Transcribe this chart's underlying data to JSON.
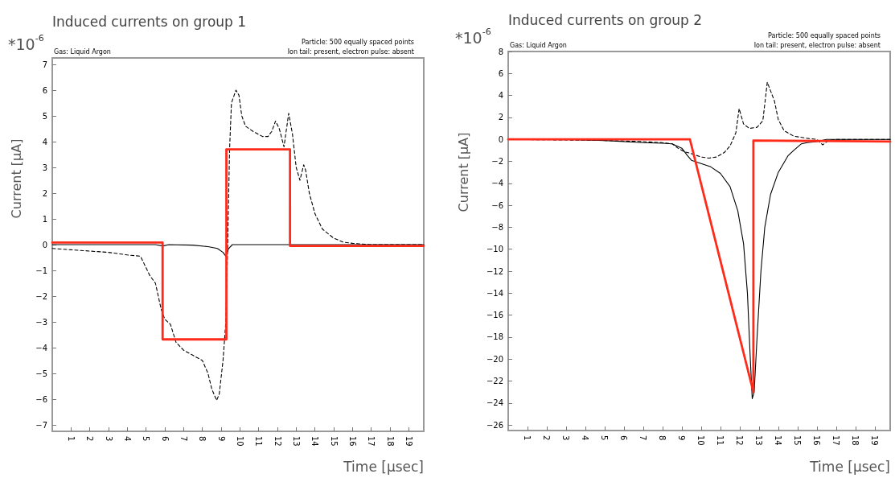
{
  "chart_data": [
    {
      "type": "line",
      "title": "Induced currents on group 1",
      "xlabel": "Time [μsec]",
      "ylabel": "Current [μA]",
      "annotations": [
        "*10$^{-6}$",
        "Gas: Liquid Argon",
        "Particle: 500 equally spaced points",
        "Ion tail: present, electron pulse: absent"
      ],
      "xlim": [
        0,
        19.8
      ],
      "xticks": [
        1,
        2,
        3,
        4,
        5,
        6,
        7,
        8,
        9,
        10,
        11,
        12,
        13,
        14,
        15,
        16,
        17,
        18,
        19
      ],
      "ylim": [
        -7.25,
        7.25
      ],
      "yticks": [
        -7,
        -6,
        -5,
        -4,
        -3,
        -2,
        -1,
        0,
        1,
        2,
        3,
        4,
        5,
        6,
        7
      ],
      "marker": "none",
      "series": [
        {
          "color": "#000000",
          "line_style": "solid",
          "x": [
            0,
            5.5,
            5.9,
            6.2,
            7.5,
            8.3,
            8.8,
            9.1,
            9.25,
            9.4,
            9.6,
            19.8
          ],
          "values": [
            0,
            0,
            -0.05,
            0,
            -0.02,
            -0.08,
            -0.15,
            -0.3,
            -0.45,
            -0.15,
            0,
            0
          ]
        },
        {
          "color": "#000000",
          "line_style": "dashed",
          "x": [
            0,
            1,
            2,
            3,
            4,
            4.7,
            5,
            5.2,
            5.5,
            5.8,
            6,
            6.3,
            6.6,
            7,
            7.5,
            8,
            8.3,
            8.5,
            8.76,
            8.9,
            9.1,
            9.25,
            9.35,
            9.45,
            9.55,
            9.79,
            9.95,
            10.1,
            10.3,
            10.7,
            11.2,
            11.5,
            11.7,
            11.9,
            12.1,
            12.35,
            12.6,
            12.8,
            13,
            13.2,
            13.4,
            13.5,
            13.7,
            14,
            14.4,
            15,
            15.5,
            16,
            17,
            19.8
          ],
          "values": [
            -0.15,
            -0.2,
            -0.25,
            -0.3,
            -0.4,
            -0.45,
            -0.9,
            -1.2,
            -1.5,
            -2.5,
            -2.9,
            -3.1,
            -3.8,
            -4.1,
            -4.3,
            -4.5,
            -5,
            -5.6,
            -6.05,
            -5.8,
            -4.5,
            -3,
            0,
            3.7,
            5.5,
            6,
            5.8,
            5,
            4.6,
            4.4,
            4.2,
            4.2,
            4.4,
            4.8,
            4.5,
            3.8,
            5.1,
            4.3,
            3,
            2.5,
            3.1,
            2.9,
            2,
            1.2,
            0.6,
            0.25,
            0.1,
            0.05,
            0,
            0
          ]
        },
        {
          "color": "#ff2a1a",
          "line_style": "solid",
          "x": [
            0,
            5.88,
            5.88,
            9.28,
            9.28,
            12.67,
            12.67,
            19.8
          ],
          "values": [
            0.08,
            0.08,
            -3.68,
            -3.68,
            3.7,
            3.7,
            -0.05,
            -0.05
          ]
        }
      ]
    },
    {
      "type": "line",
      "title": "Induced currents on group 2",
      "xlabel": "Time [μsec]",
      "ylabel": "Current [μA]",
      "annotations": [
        "*10$^{-6}$",
        "Gas: Liquid Argon",
        "Particle: 500 equally spaced points",
        "Ion tail: present, electron pulse: absent"
      ],
      "xlim": [
        0,
        19.8
      ],
      "xticks": [
        1,
        2,
        3,
        4,
        5,
        6,
        7,
        8,
        9,
        10,
        11,
        12,
        13,
        14,
        15,
        16,
        17,
        18,
        19
      ],
      "ylim": [
        -26.5,
        8
      ],
      "yticks": [
        -26,
        -24,
        -22,
        -20,
        -18,
        -16,
        -14,
        -12,
        -10,
        -8,
        -6,
        -4,
        -2,
        0,
        2,
        4,
        6,
        8
      ],
      "marker": "none",
      "series": [
        {
          "color": "#000000",
          "line_style": "solid",
          "x": [
            0,
            3,
            5,
            6,
            7,
            8,
            8.5,
            9,
            9.3,
            9.5,
            10,
            10.5,
            11,
            11.5,
            11.9,
            12.2,
            12.4,
            12.55,
            12.65,
            12.75,
            12.9,
            13.1,
            13.3,
            13.6,
            14,
            14.5,
            14.8,
            15.2,
            15.5,
            16,
            16.5,
            19.8
          ],
          "values": [
            0,
            0,
            -0.1,
            -0.2,
            -0.3,
            -0.35,
            -0.4,
            -0.8,
            -1.5,
            -1.9,
            -2.2,
            -2.5,
            -3.1,
            -4.3,
            -6.5,
            -9.5,
            -14,
            -20,
            -23.6,
            -23,
            -18,
            -12,
            -8,
            -5,
            -3,
            -1.5,
            -1,
            -0.4,
            -0.3,
            -0.2,
            0,
            0
          ]
        },
        {
          "color": "#000000",
          "line_style": "dashed",
          "x": [
            0,
            5,
            7,
            8,
            8.5,
            8.8,
            9.1,
            9.5,
            10,
            10.4,
            10.8,
            11.2,
            11.5,
            11.8,
            11.97,
            12.2,
            12.5,
            12.9,
            13.2,
            13.43,
            13.8,
            14,
            14.3,
            14.8,
            15.5,
            16,
            16.3,
            16.6,
            17,
            19.8
          ],
          "values": [
            0,
            -0.1,
            -0.2,
            -0.3,
            -0.4,
            -0.8,
            -1.1,
            -1.3,
            -1.6,
            -1.7,
            -1.6,
            -1.2,
            -0.6,
            0.6,
            2.8,
            1.4,
            1,
            1.1,
            1.7,
            5.2,
            3.5,
            1.8,
            0.8,
            0.3,
            0.1,
            0,
            -0.5,
            -0.1,
            0,
            0
          ]
        },
        {
          "color": "#ff2a1a",
          "line_style": "solid",
          "x": [
            0,
            9.42,
            12.71,
            12.71,
            19.8
          ],
          "values": [
            0,
            0,
            -23,
            -0.1,
            -0.2
          ]
        }
      ]
    }
  ]
}
